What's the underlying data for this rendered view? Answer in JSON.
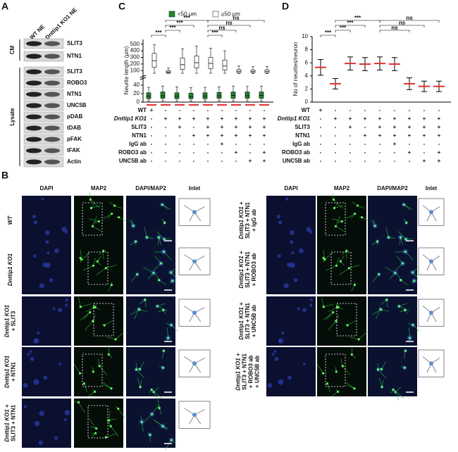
{
  "panel_a": {
    "label": "A",
    "columns": [
      "WT NE",
      "Dnttip1 KO1 NE"
    ],
    "groups": [
      {
        "name": "CM",
        "rows": [
          "SLIT3",
          "NTN1"
        ]
      },
      {
        "name": "Lysate",
        "rows": [
          "SLIT3",
          "ROBO3",
          "NTN1",
          "UNC5B",
          "pDAB",
          "tDAB",
          "pFAK",
          "tFAK",
          "Actin"
        ]
      }
    ]
  },
  "conditions": {
    "rows": [
      "WT",
      "Dnttip1 KO1",
      "SLIT3",
      "NTN1",
      "IgG ab",
      "ROBO3 ab",
      "UNC5B ab"
    ],
    "signs": [
      [
        "+",
        "-",
        "-",
        "-",
        "-",
        "-",
        "-",
        "-",
        "-"
      ],
      [
        "-",
        "+",
        "+",
        "+",
        "+",
        "+",
        "+",
        "+",
        "+"
      ],
      [
        "-",
        "-",
        "+",
        "-",
        "+",
        "+",
        "+",
        "+",
        "+"
      ],
      [
        "-",
        "-",
        "-",
        "+",
        "+",
        "+",
        "+",
        "+",
        "+"
      ],
      [
        "-",
        "-",
        "-",
        "-",
        "-",
        "+",
        "-",
        "-",
        "-"
      ],
      [
        "-",
        "-",
        "-",
        "-",
        "-",
        "-",
        "+",
        "-",
        "+"
      ],
      [
        "-",
        "-",
        "-",
        "-",
        "-",
        "-",
        "-",
        "+",
        "+"
      ]
    ]
  },
  "panel_c": {
    "label": "C",
    "type": "box",
    "ylabel": "Neurite length (μm)",
    "legend": [
      {
        "name": "<50 μm",
        "color": "#1e8a2a"
      },
      {
        "name": "≥50 μm",
        "color": "#ffffff"
      }
    ],
    "ylim_low": [
      0,
      50
    ],
    "yticks_low": [
      0,
      20,
      40
    ],
    "ylim_high": [
      50,
      550
    ],
    "yticks_high": [
      100,
      200,
      300,
      400,
      500
    ],
    "short": [
      [
        3,
        8,
        14,
        22,
        35
      ],
      [
        3,
        9,
        15,
        24,
        38
      ],
      [
        3,
        8,
        14,
        22,
        36
      ],
      [
        3,
        8,
        13,
        21,
        34
      ],
      [
        3,
        8,
        14,
        22,
        35
      ],
      [
        3,
        9,
        15,
        23,
        36
      ],
      [
        3,
        9,
        16,
        24,
        38
      ],
      [
        3,
        9,
        15,
        24,
        37
      ],
      [
        3,
        9,
        16,
        24,
        38
      ]
    ],
    "long": [
      [
        60,
        150,
        250,
        360,
        490
      ],
      [
        55,
        65,
        80,
        100,
        140
      ],
      [
        60,
        120,
        190,
        290,
        430
      ],
      [
        60,
        140,
        220,
        320,
        470
      ],
      [
        60,
        130,
        210,
        300,
        440
      ],
      [
        60,
        110,
        170,
        260,
        400
      ],
      [
        55,
        70,
        90,
        115,
        170
      ],
      [
        55,
        70,
        85,
        110,
        160
      ],
      [
        55,
        68,
        88,
        112,
        165
      ]
    ],
    "significance": [
      "***",
      "***",
      "***",
      "***",
      "***",
      "ns",
      "ns",
      "ns"
    ]
  },
  "panel_d": {
    "label": "D",
    "type": "scatter",
    "ylabel": "No of neurites/neuron",
    "ylim": [
      0,
      10
    ],
    "yticks": [
      0,
      2,
      4,
      6,
      8,
      10
    ],
    "means": [
      5.3,
      2.8,
      5.9,
      5.8,
      5.9,
      5.8,
      2.8,
      2.4,
      2.4
    ],
    "sd": [
      1.2,
      0.8,
      1.0,
      1.0,
      1.0,
      1.0,
      0.9,
      0.8,
      0.8
    ],
    "significance": [
      "***",
      "***",
      "***",
      "***",
      "ns",
      "ns",
      "ns"
    ]
  },
  "panel_b": {
    "label": "B",
    "columns": [
      "DAPI",
      "MAP2",
      "DAPI/MAP2",
      "Inlet"
    ],
    "left_rows": [
      [
        "WT"
      ],
      [
        "Dnttip1 KO1"
      ],
      [
        "Dnttip1 KO1",
        "+ SLIT3"
      ],
      [
        "Dnttip1 KO1",
        "+ NTN1"
      ],
      [
        "Dnttip1 KO1 +",
        "SLIT3 + NTN1"
      ]
    ],
    "right_rows": [
      [
        "Dnttip1 KO1 +",
        "SLIT3 + NTN1",
        "+ IgG ab"
      ],
      [
        "Dnttip1 KO1 +",
        "SLIT3 + NTN1",
        "+ ROBO3 ab"
      ],
      [
        "Dnttip1 KO1 +",
        "SLIT3 + NTN1",
        "+ UNC5B ab"
      ],
      [
        "Dnttip1 KO1 +",
        "SLIT3 + NTN1",
        "+ ROBO3 ab",
        "+ UNC5B ab"
      ]
    ]
  }
}
